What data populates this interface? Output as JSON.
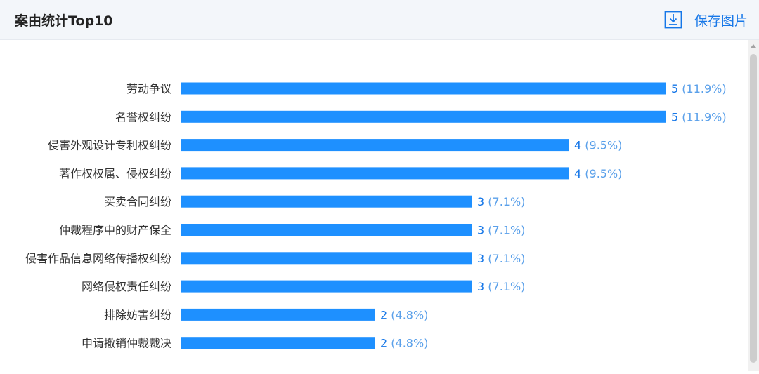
{
  "header": {
    "title": "案由统计Top10",
    "save_label": "保存图片",
    "save_icon": "download-icon"
  },
  "colors": {
    "bar": "#1e90ff",
    "value": "#1677e8",
    "percent": "#5aa0ea",
    "label": "#333333",
    "accent": "#1677e8"
  },
  "chart_data": {
    "type": "bar",
    "orientation": "horizontal",
    "title": "案由统计Top10",
    "categories": [
      "劳动争议",
      "名誉权纠纷",
      "侵害外观设计专利权纠纷",
      "著作权权属、侵权纠纷",
      "买卖合同纠纷",
      "仲裁程序中的财产保全",
      "侵害作品信息网络传播权纠纷",
      "网络侵权责任纠纷",
      "排除妨害纠纷",
      "申请撤销仲裁裁决"
    ],
    "values": [
      5,
      5,
      4,
      4,
      3,
      3,
      3,
      3,
      2,
      2
    ],
    "percent_labels": [
      "(11.9%)",
      "(11.9%)",
      "(9.5%)",
      "(9.5%)",
      "(7.1%)",
      "(7.1%)",
      "(7.1%)",
      "(7.1%)",
      "(4.8%)",
      "(4.8%)"
    ],
    "xlim": [
      0,
      5
    ],
    "grid": false,
    "legend": "none"
  }
}
